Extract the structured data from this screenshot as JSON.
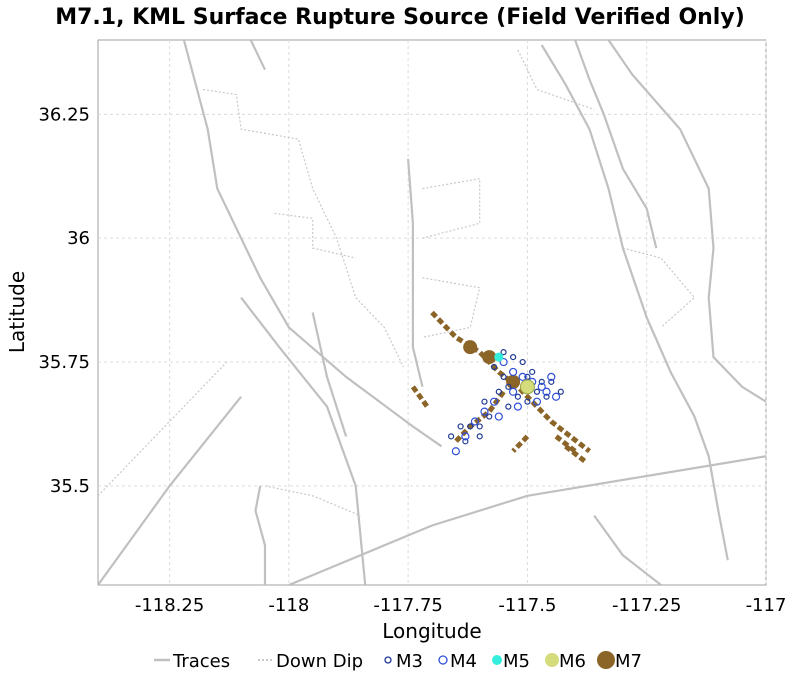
{
  "chart_data": {
    "type": "scatter",
    "title": "M7.1, KML Surface Rupture Source (Field Verified Only)",
    "xlabel": "Longitude",
    "ylabel": "Latitude",
    "xlim": [
      -118.4,
      -117.0
    ],
    "ylim": [
      35.3,
      36.4
    ],
    "xticks": [
      -118.25,
      -118,
      -117.75,
      -117.5,
      -117.25,
      -117
    ],
    "xtick_labels": [
      "-118.25",
      "-118",
      "-117.75",
      "-117.5",
      "-117.25",
      "-117"
    ],
    "yticks": [
      35.5,
      35.75,
      36,
      36.25
    ],
    "ytick_labels": [
      "35.5",
      "35.75",
      "36",
      "36.25"
    ],
    "grid": true,
    "legend_position": "bottom",
    "legend": [
      {
        "key": "traces",
        "label": "Traces",
        "kind": "line",
        "color": "#c0c0c0"
      },
      {
        "key": "downdip",
        "label": "Down Dip",
        "kind": "dotted",
        "color": "#c8c8c8"
      },
      {
        "key": "m3",
        "label": "M3",
        "kind": "circle",
        "color": "#1f3a93"
      },
      {
        "key": "m4",
        "label": "M4",
        "kind": "circle",
        "color": "#3050d8"
      },
      {
        "key": "m5",
        "label": "M5",
        "kind": "dot",
        "color": "#33eedd"
      },
      {
        "key": "m6",
        "label": "M6",
        "kind": "dot",
        "color": "#d4dc7c"
      },
      {
        "key": "m7",
        "label": "M7",
        "kind": "dot",
        "color": "#8b6428"
      }
    ],
    "trace_series": [
      [
        [
          -118.22,
          36.4
        ],
        [
          -118.17,
          36.22
        ],
        [
          -118.15,
          36.1
        ],
        [
          -118.1,
          36.0
        ],
        [
          -118.06,
          35.92
        ],
        [
          -118.0,
          35.82
        ],
        [
          -117.88,
          35.72
        ],
        [
          -117.74,
          35.62
        ],
        [
          -117.68,
          35.58
        ]
      ],
      [
        [
          -118.08,
          36.4
        ],
        [
          -118.05,
          36.34
        ]
      ],
      [
        [
          -118.1,
          35.88
        ],
        [
          -118.02,
          35.78
        ],
        [
          -117.92,
          35.66
        ],
        [
          -117.86,
          35.5
        ],
        [
          -117.84,
          35.3
        ]
      ],
      [
        [
          -117.95,
          35.85
        ],
        [
          -117.92,
          35.72
        ],
        [
          -117.88,
          35.6
        ]
      ],
      [
        [
          -117.75,
          36.16
        ],
        [
          -117.74,
          36.03
        ],
        [
          -117.74,
          35.92
        ],
        [
          -117.74,
          35.78
        ],
        [
          -117.72,
          35.7
        ]
      ],
      [
        [
          -117.4,
          36.4
        ],
        [
          -117.37,
          36.32
        ],
        [
          -117.34,
          36.25
        ],
        [
          -117.3,
          36.14
        ],
        [
          -117.25,
          36.06
        ],
        [
          -117.23,
          35.98
        ]
      ],
      [
        [
          -117.33,
          36.4
        ],
        [
          -117.28,
          36.33
        ],
        [
          -117.18,
          36.22
        ],
        [
          -117.12,
          36.1
        ],
        [
          -117.11,
          35.98
        ],
        [
          -117.12,
          35.88
        ],
        [
          -117.11,
          35.76
        ],
        [
          -117.05,
          35.7
        ],
        [
          -117.0,
          35.67
        ]
      ],
      [
        [
          -117.47,
          36.39
        ],
        [
          -117.42,
          36.31
        ],
        [
          -117.37,
          36.22
        ],
        [
          -117.33,
          36.1
        ],
        [
          -117.3,
          35.98
        ],
        [
          -117.25,
          35.84
        ],
        [
          -117.2,
          35.73
        ],
        [
          -117.15,
          35.64
        ],
        [
          -117.12,
          35.56
        ],
        [
          -117.1,
          35.45
        ],
        [
          -117.08,
          35.35
        ]
      ],
      [
        [
          -118.4,
          35.3
        ],
        [
          -118.25,
          35.5
        ],
        [
          -118.1,
          35.68
        ]
      ],
      [
        [
          -118.0,
          35.3
        ],
        [
          -117.7,
          35.42
        ],
        [
          -117.5,
          35.48
        ],
        [
          -117.25,
          35.52
        ],
        [
          -117.0,
          35.56
        ]
      ],
      [
        [
          -117.36,
          35.44
        ],
        [
          -117.3,
          35.36
        ],
        [
          -117.22,
          35.3
        ]
      ],
      [
        [
          -118.05,
          35.3
        ],
        [
          -118.05,
          35.38
        ],
        [
          -118.07,
          35.45
        ],
        [
          -118.06,
          35.5
        ]
      ]
    ],
    "downdip_series": [
      [
        [
          -118.18,
          36.3
        ],
        [
          -118.11,
          36.29
        ],
        [
          -118.1,
          36.22
        ],
        [
          -117.98,
          36.2
        ],
        [
          -117.95,
          36.1
        ],
        [
          -117.9,
          36.0
        ],
        [
          -117.86,
          35.88
        ],
        [
          -117.8,
          35.82
        ],
        [
          -117.76,
          35.74
        ]
      ],
      [
        [
          -118.03,
          36.05
        ],
        [
          -117.95,
          36.04
        ],
        [
          -117.95,
          35.98
        ],
        [
          -117.86,
          35.96
        ]
      ],
      [
        [
          -117.72,
          36.1
        ],
        [
          -117.6,
          36.12
        ],
        [
          -117.6,
          36.03
        ],
        [
          -117.72,
          36.0
        ]
      ],
      [
        [
          -117.72,
          35.92
        ],
        [
          -117.6,
          35.9
        ],
        [
          -117.62,
          35.82
        ],
        [
          -117.72,
          35.8
        ]
      ],
      [
        [
          -117.3,
          35.98
        ],
        [
          -117.22,
          35.96
        ],
        [
          -117.15,
          35.88
        ],
        [
          -117.22,
          35.82
        ]
      ],
      [
        [
          -118.4,
          35.48
        ],
        [
          -118.3,
          35.58
        ],
        [
          -118.2,
          35.68
        ],
        [
          -118.13,
          35.75
        ]
      ],
      [
        [
          -118.05,
          35.5
        ],
        [
          -117.95,
          35.48
        ],
        [
          -117.85,
          35.44
        ]
      ],
      [
        [
          -117.52,
          36.38
        ],
        [
          -117.48,
          36.3
        ],
        [
          -117.42,
          36.28
        ],
        [
          -117.36,
          36.26
        ]
      ]
    ],
    "m7_segments": [
      [
        [
          -117.7,
          35.85
        ],
        [
          -117.65,
          35.8
        ],
        [
          -117.6,
          35.77
        ],
        [
          -117.56,
          35.73
        ],
        [
          -117.52,
          35.7
        ],
        [
          -117.48,
          35.66
        ],
        [
          -117.45,
          35.63
        ],
        [
          -117.41,
          35.6
        ],
        [
          -117.37,
          35.57
        ]
      ],
      [
        [
          -117.74,
          35.7
        ],
        [
          -117.71,
          35.66
        ]
      ],
      [
        [
          -117.55,
          35.69
        ],
        [
          -117.58,
          35.65
        ],
        [
          -117.62,
          35.62
        ],
        [
          -117.65,
          35.59
        ]
      ],
      [
        [
          -117.5,
          35.6
        ],
        [
          -117.53,
          35.57
        ]
      ],
      [
        [
          -117.44,
          35.6
        ],
        [
          -117.4,
          35.57
        ]
      ],
      [
        [
          -117.42,
          35.58
        ],
        [
          -117.38,
          35.55
        ]
      ]
    ],
    "m7_points": [
      [
        -117.58,
        35.76
      ],
      [
        -117.53,
        35.71
      ],
      [
        -117.62,
        35.78
      ]
    ],
    "m6_points": [
      [
        -117.5,
        35.7
      ]
    ],
    "m5_points": [
      [
        -117.56,
        35.76
      ]
    ],
    "m4_points": [
      [
        -117.55,
        35.75
      ],
      [
        -117.53,
        35.73
      ],
      [
        -117.51,
        35.72
      ],
      [
        -117.49,
        35.71
      ],
      [
        -117.47,
        35.7
      ],
      [
        -117.53,
        35.69
      ],
      [
        -117.57,
        35.67
      ],
      [
        -117.59,
        35.65
      ],
      [
        -117.61,
        35.63
      ],
      [
        -117.63,
        35.6
      ],
      [
        -117.65,
        35.57
      ],
      [
        -117.46,
        35.69
      ],
      [
        -117.45,
        35.72
      ],
      [
        -117.48,
        35.67
      ],
      [
        -117.52,
        35.66
      ],
      [
        -117.56,
        35.64
      ],
      [
        -117.44,
        35.68
      ]
    ],
    "m3_points": [
      [
        -117.57,
        35.74
      ],
      [
        -117.55,
        35.72
      ],
      [
        -117.54,
        35.7
      ],
      [
        -117.52,
        35.68
      ],
      [
        -117.5,
        35.67
      ],
      [
        -117.48,
        35.69
      ],
      [
        -117.47,
        35.71
      ],
      [
        -117.54,
        35.66
      ],
      [
        -117.58,
        35.64
      ],
      [
        -117.6,
        35.62
      ],
      [
        -117.62,
        35.62
      ],
      [
        -117.63,
        35.59
      ],
      [
        -117.66,
        35.6
      ],
      [
        -117.5,
        35.72
      ],
      [
        -117.46,
        35.68
      ],
      [
        -117.45,
        35.71
      ],
      [
        -117.49,
        35.73
      ],
      [
        -117.51,
        35.75
      ],
      [
        -117.53,
        35.76
      ],
      [
        -117.55,
        35.77
      ],
      [
        -117.43,
        35.69
      ],
      [
        -117.6,
        35.6
      ],
      [
        -117.64,
        35.62
      ],
      [
        -117.59,
        35.67
      ],
      [
        -117.56,
        35.69
      ]
    ]
  }
}
